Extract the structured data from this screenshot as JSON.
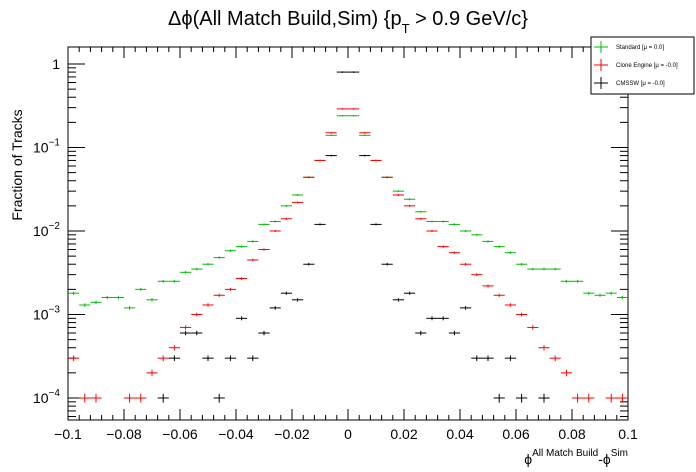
{
  "chart_data": {
    "type": "scatter",
    "title_parts": {
      "pre": "Δϕ(All Match Build,Sim) {p",
      "sub": "T",
      "post": " > 0.9 GeV/c}"
    },
    "title": "Δϕ(All Match Build,Sim) {p T > 0.9 GeV/c}",
    "xlabel_parts": {
      "phi1": "ϕ",
      "sup1": "All Match Build",
      "mid": "-ϕ",
      "sup2": "Sim"
    },
    "xlabel": "ϕAll Match Build-ϕSim",
    "ylabel": "Fraction of Tracks",
    "xlim": [
      -0.1,
      0.1
    ],
    "ylim": [
      5e-05,
      1.5
    ],
    "yscale": "log",
    "grid": false,
    "legend_position": "top-right",
    "x_ticks": [
      -0.1,
      -0.08,
      -0.06,
      -0.04,
      -0.02,
      0,
      0.02,
      0.04,
      0.06,
      0.08,
      0.1
    ],
    "x_tick_labels": [
      "−0.1",
      "−0.08",
      "−0.06",
      "−0.04",
      "−0.02",
      "0",
      "0.02",
      "0.04",
      "0.06",
      "0.08",
      "0.1"
    ],
    "y_ticks": [
      0.0001,
      0.001,
      0.01,
      0.1,
      1
    ],
    "y_tick_labels": [
      {
        "base": "10",
        "exp": "−4"
      },
      {
        "base": "10",
        "exp": "−3"
      },
      {
        "base": "10",
        "exp": "−2"
      },
      {
        "base": "10",
        "exp": "−1"
      },
      {
        "base": "1",
        "exp": ""
      }
    ],
    "bin_width": 0.004,
    "series": [
      {
        "name": "Standard",
        "legend_label": "Standard  [μ = 0.0]",
        "color": "#00bb00",
        "x": [
          -0.098,
          -0.094,
          -0.09,
          -0.086,
          -0.082,
          -0.078,
          -0.074,
          -0.07,
          -0.066,
          -0.062,
          -0.058,
          -0.054,
          -0.05,
          -0.046,
          -0.042,
          -0.038,
          -0.034,
          -0.03,
          -0.026,
          -0.022,
          -0.018,
          -0.014,
          -0.01,
          -0.006,
          -0.002,
          0.002,
          0.006,
          0.01,
          0.014,
          0.018,
          0.022,
          0.026,
          0.03,
          0.034,
          0.038,
          0.042,
          0.046,
          0.05,
          0.054,
          0.058,
          0.062,
          0.066,
          0.07,
          0.074,
          0.078,
          0.082,
          0.086,
          0.09,
          0.094,
          0.098
        ],
        "y": [
          0.0018,
          0.0013,
          0.0014,
          0.0016,
          0.0016,
          0.0012,
          0.002,
          0.0015,
          0.0025,
          0.0025,
          0.0032,
          0.0035,
          0.004,
          0.0048,
          0.0058,
          0.0065,
          0.0075,
          0.012,
          0.013,
          0.02,
          0.027,
          0.044,
          0.07,
          0.14,
          0.24,
          0.24,
          0.14,
          0.07,
          0.044,
          0.03,
          0.024,
          0.017,
          0.013,
          0.013,
          0.012,
          0.01,
          0.009,
          0.0075,
          0.0065,
          0.0055,
          0.004,
          0.0035,
          0.0035,
          0.0035,
          0.0025,
          0.0025,
          0.0018,
          0.0017,
          0.0018,
          0.0016
        ]
      },
      {
        "name": "Clone Engine",
        "legend_label": "Clone Engine  [μ = -0.0]",
        "color": "#ff0000",
        "x": [
          -0.098,
          -0.094,
          -0.09,
          -0.086,
          -0.082,
          -0.078,
          -0.074,
          -0.07,
          -0.066,
          -0.062,
          -0.058,
          -0.054,
          -0.05,
          -0.046,
          -0.042,
          -0.038,
          -0.034,
          -0.03,
          -0.026,
          -0.022,
          -0.018,
          -0.014,
          -0.01,
          -0.006,
          -0.002,
          0.002,
          0.006,
          0.01,
          0.014,
          0.018,
          0.022,
          0.026,
          0.03,
          0.034,
          0.038,
          0.042,
          0.046,
          0.05,
          0.054,
          0.058,
          0.062,
          0.066,
          0.07,
          0.074,
          0.078,
          0.082,
          0.086,
          0.09,
          0.094,
          0.098
        ],
        "y": [
          0.0003,
          0.0001,
          0.0001,
          null,
          null,
          0.0001,
          0.0001,
          0.0002,
          0.0003,
          0.0004,
          0.0007,
          0.001,
          0.0013,
          0.0017,
          0.002,
          0.0027,
          0.0045,
          0.006,
          0.01,
          0.014,
          0.022,
          0.044,
          0.07,
          0.15,
          0.29,
          0.29,
          0.15,
          0.07,
          0.044,
          0.027,
          0.02,
          0.014,
          0.01,
          0.0065,
          0.0055,
          0.004,
          0.003,
          0.0022,
          0.0017,
          0.0013,
          0.001,
          0.0007,
          0.0004,
          0.0003,
          0.0002,
          0.0001,
          0.0001,
          null,
          0.0001,
          0.0001
        ]
      },
      {
        "name": "CMSSW",
        "legend_label": "CMSSW  [μ = -0.0]",
        "color": "#000000",
        "x": [
          -0.098,
          -0.094,
          -0.09,
          -0.086,
          -0.082,
          -0.078,
          -0.074,
          -0.07,
          -0.066,
          -0.062,
          -0.058,
          -0.054,
          -0.05,
          -0.046,
          -0.042,
          -0.038,
          -0.034,
          -0.03,
          -0.026,
          -0.022,
          -0.018,
          -0.014,
          -0.01,
          -0.006,
          -0.002,
          0.002,
          0.006,
          0.01,
          0.014,
          0.018,
          0.022,
          0.026,
          0.03,
          0.034,
          0.038,
          0.042,
          0.046,
          0.05,
          0.054,
          0.058,
          0.062,
          0.066,
          0.07,
          0.074,
          0.078,
          0.082,
          0.086,
          0.09,
          0.094,
          0.098
        ],
        "y": [
          null,
          null,
          null,
          null,
          null,
          null,
          null,
          null,
          0.0001,
          0.0003,
          0.0006,
          0.0006,
          0.0003,
          0.0001,
          0.0003,
          0.0009,
          0.0003,
          0.0006,
          0.0012,
          0.0018,
          0.0015,
          0.004,
          0.012,
          0.08,
          0.8,
          0.8,
          0.08,
          0.012,
          0.004,
          0.0015,
          0.0018,
          0.0006,
          0.0009,
          0.0009,
          0.0006,
          0.0012,
          0.0003,
          0.0003,
          0.0001,
          0.0003,
          0.0001,
          null,
          0.0001,
          null,
          null,
          null,
          null,
          null,
          null,
          null
        ]
      }
    ]
  }
}
